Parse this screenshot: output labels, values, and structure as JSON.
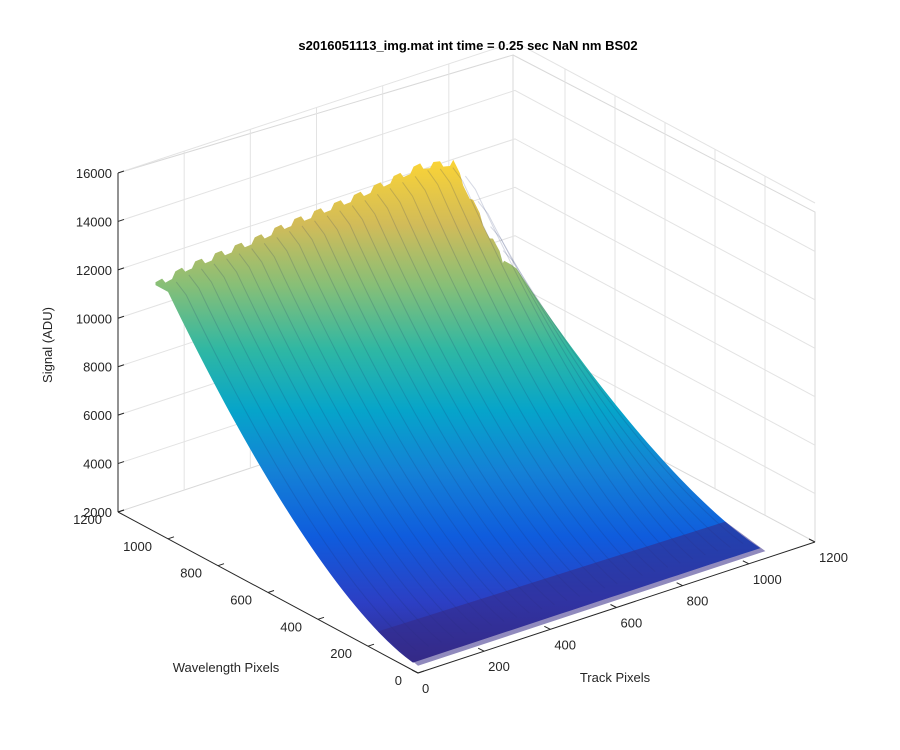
{
  "chart_data": {
    "type": "surface",
    "title": "s2016051113_img.mat int time = 0.25 sec  NaN nm BS02",
    "xlabel": "Track Pixels",
    "ylabel": "Wavelength Pixels",
    "zlabel": "Signal (ADU)",
    "xlim": [
      0,
      1200
    ],
    "ylim": [
      0,
      1200
    ],
    "zlim": [
      2000,
      16000
    ],
    "x_ticks": [
      "0",
      "200",
      "400",
      "600",
      "800",
      "1000",
      "1200"
    ],
    "y_ticks": [
      "0",
      "200",
      "400",
      "600",
      "800",
      "1000",
      "1200"
    ],
    "z_ticks": [
      "2000",
      "4000",
      "6000",
      "8000",
      "10000",
      "12000",
      "14000",
      "16000"
    ],
    "grid": true,
    "colormap": "parula",
    "ridge_profile": {
      "track_pixels": [
        0,
        100,
        200,
        300,
        400,
        500,
        600,
        700,
        800,
        900,
        1000,
        1050
      ],
      "signal_at_wavelength_1000": [
        12200,
        12500,
        12600,
        12700,
        12900,
        13000,
        13100,
        13300,
        13500,
        13200,
        10000,
        8500
      ]
    }
  }
}
